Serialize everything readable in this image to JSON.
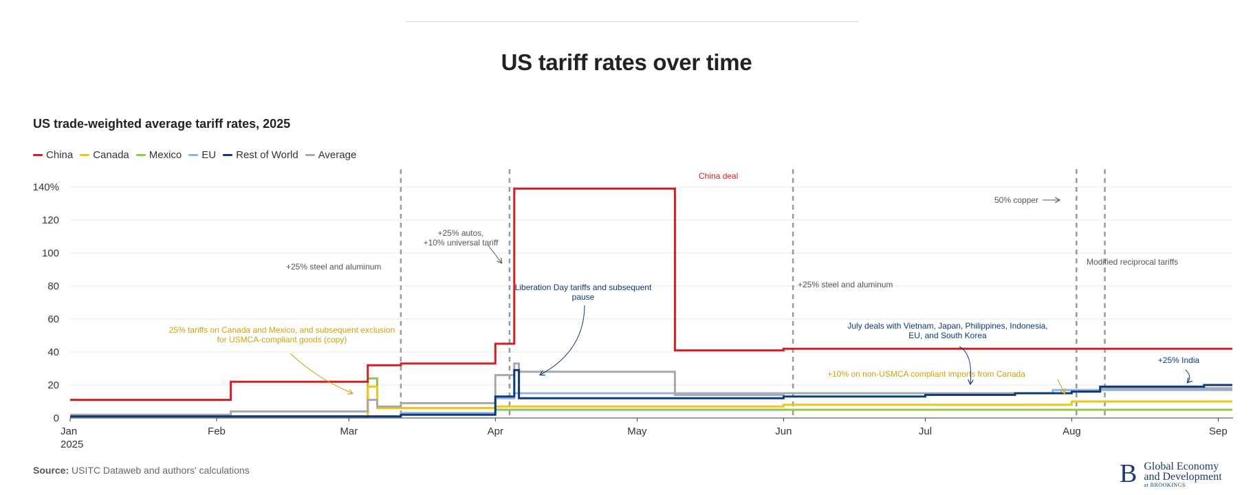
{
  "header": {
    "title": "US tariff rates over time"
  },
  "chart_data": {
    "type": "line",
    "step": true,
    "title": "US trade-weighted average tariff rates, 2025",
    "xlabel": "",
    "ylabel": "",
    "x_ticks": [
      {
        "label": "Jan",
        "sublabel": "2025",
        "day": 0
      },
      {
        "label": "Feb",
        "day": 31
      },
      {
        "label": "Mar",
        "day": 59
      },
      {
        "label": "Apr",
        "day": 90
      },
      {
        "label": "May",
        "day": 120
      },
      {
        "label": "Jun",
        "day": 151
      },
      {
        "label": "Jul",
        "day": 181
      },
      {
        "label": "Aug",
        "day": 212
      },
      {
        "label": "Sep",
        "day": 243
      }
    ],
    "xlim": [
      0,
      246
    ],
    "ylim": [
      0,
      140
    ],
    "y_ticks": [
      {
        "value": 0,
        "label": "0"
      },
      {
        "value": 20,
        "label": "20"
      },
      {
        "value": 40,
        "label": "40"
      },
      {
        "value": 60,
        "label": "60"
      },
      {
        "value": 80,
        "label": "80"
      },
      {
        "value": 100,
        "label": "100"
      },
      {
        "value": 120,
        "label": "120"
      },
      {
        "value": 140,
        "label": "140%"
      }
    ],
    "series": [
      {
        "name": "Mexico",
        "color": "#8cc84b",
        "points": [
          [
            0,
            1
          ],
          [
            63,
            1
          ],
          [
            63,
            24
          ],
          [
            65,
            24
          ],
          [
            65,
            6
          ],
          [
            90,
            6
          ],
          [
            90,
            5
          ],
          [
            151,
            5
          ],
          [
            151,
            5
          ],
          [
            246,
            5
          ]
        ]
      },
      {
        "name": "Canada",
        "color": "#f2c416",
        "points": [
          [
            0,
            1
          ],
          [
            63,
            1
          ],
          [
            63,
            19
          ],
          [
            65,
            19
          ],
          [
            65,
            6
          ],
          [
            90,
            6
          ],
          [
            90,
            7
          ],
          [
            151,
            7
          ],
          [
            151,
            8
          ],
          [
            212,
            8
          ],
          [
            212,
            10
          ],
          [
            246,
            10
          ]
        ]
      },
      {
        "name": "EU",
        "color": "#8fb4e3",
        "points": [
          [
            0,
            1
          ],
          [
            70,
            1
          ],
          [
            70,
            3
          ],
          [
            90,
            3
          ],
          [
            90,
            12
          ],
          [
            94,
            12
          ],
          [
            94,
            15
          ],
          [
            128,
            15
          ],
          [
            128,
            15
          ],
          [
            151,
            15
          ],
          [
            151,
            15
          ],
          [
            208,
            15
          ],
          [
            208,
            17
          ],
          [
            218,
            17
          ],
          [
            218,
            17
          ],
          [
            246,
            17
          ]
        ]
      },
      {
        "name": "Average",
        "color": "#a8a8a8",
        "points": [
          [
            0,
            2
          ],
          [
            34,
            2
          ],
          [
            34,
            4
          ],
          [
            63,
            4
          ],
          [
            63,
            11
          ],
          [
            65,
            11
          ],
          [
            65,
            7
          ],
          [
            70,
            7
          ],
          [
            70,
            9
          ],
          [
            90,
            9
          ],
          [
            90,
            26
          ],
          [
            94,
            26
          ],
          [
            94,
            33
          ],
          [
            95,
            33
          ],
          [
            95,
            28
          ],
          [
            128,
            28
          ],
          [
            128,
            14
          ],
          [
            151,
            14
          ],
          [
            151,
            15
          ],
          [
            212,
            15
          ],
          [
            212,
            16
          ],
          [
            218,
            16
          ],
          [
            218,
            18
          ],
          [
            246,
            18
          ]
        ]
      },
      {
        "name": "Rest of World",
        "color": "#0d3a78",
        "points": [
          [
            0,
            1
          ],
          [
            70,
            1
          ],
          [
            70,
            2
          ],
          [
            90,
            2
          ],
          [
            90,
            13
          ],
          [
            94,
            13
          ],
          [
            94,
            29
          ],
          [
            95,
            29
          ],
          [
            95,
            12
          ],
          [
            151,
            12
          ],
          [
            151,
            13
          ],
          [
            181,
            13
          ],
          [
            181,
            14
          ],
          [
            200,
            14
          ],
          [
            200,
            15
          ],
          [
            212,
            15
          ],
          [
            212,
            16
          ],
          [
            218,
            16
          ],
          [
            218,
            19
          ],
          [
            240,
            19
          ],
          [
            240,
            20
          ],
          [
            246,
            20
          ]
        ]
      },
      {
        "name": "China",
        "color": "#d21f26",
        "points": [
          [
            0,
            11
          ],
          [
            34,
            11
          ],
          [
            34,
            22
          ],
          [
            63,
            22
          ],
          [
            63,
            32
          ],
          [
            70,
            32
          ],
          [
            70,
            33
          ],
          [
            90,
            33
          ],
          [
            90,
            45
          ],
          [
            94,
            45
          ],
          [
            94,
            139
          ],
          [
            128,
            139
          ],
          [
            128,
            41
          ],
          [
            151,
            41
          ],
          [
            151,
            42
          ],
          [
            246,
            42
          ]
        ]
      }
    ],
    "event_lines": [
      {
        "day": 70,
        "label": "+25% steel and aluminum"
      },
      {
        "day": 93,
        "label": "+25% autos, +10% universal tariff"
      },
      {
        "day": 153,
        "label": "+25% steel and aluminum"
      },
      {
        "day": 213,
        "label": "50% copper"
      },
      {
        "day": 219,
        "label": "Modified reciprocal tariffs"
      }
    ],
    "annotations": [
      {
        "id": "china_deal",
        "lines": [
          "China deal"
        ],
        "color": "#d21f26"
      },
      {
        "id": "steel1",
        "lines": [
          "+25% steel and aluminum"
        ],
        "color": "#555555"
      },
      {
        "id": "autos",
        "lines": [
          "+25% autos,",
          "+10% universal tariff"
        ],
        "color": "#555555"
      },
      {
        "id": "usmca",
        "lines": [
          "25% tariffs on Canada and Mexico, and subsequent exclusion",
          "for USMCA-compliant goods (copy)"
        ],
        "color": "#c9a30b"
      },
      {
        "id": "liberation",
        "lines": [
          "Liberation Day tariffs and subsequent",
          "pause"
        ],
        "color": "#0d3a78"
      },
      {
        "id": "steel2",
        "lines": [
          "+25% steel and aluminum"
        ],
        "color": "#555555"
      },
      {
        "id": "july",
        "lines": [
          "July deals with Vietnam, Japan,  Philippines, Indonesia,",
          "EU, and South Korea"
        ],
        "color": "#0d3a78"
      },
      {
        "id": "canada10",
        "lines": [
          "+10% on non-USMCA compliant imports from Canada"
        ],
        "color": "#c9a30b"
      },
      {
        "id": "copper",
        "lines": [
          "50% copper"
        ],
        "color": "#555555"
      },
      {
        "id": "reciprocal",
        "lines": [
          "Modified reciprocal tariffs"
        ],
        "color": "#555555"
      },
      {
        "id": "india",
        "lines": [
          "+25% India"
        ],
        "color": "#0d3a78"
      }
    ],
    "legend": [
      {
        "name": "China",
        "color": "#d21f26"
      },
      {
        "name": "Canada",
        "color": "#f2c416"
      },
      {
        "name": "Mexico",
        "color": "#8cc84b"
      },
      {
        "name": "EU",
        "color": "#8fb4e3"
      },
      {
        "name": "Rest of World",
        "color": "#0d3a78"
      },
      {
        "name": "Average",
        "color": "#a8a8a8"
      }
    ],
    "legend_position": "top-left",
    "grid": true
  },
  "footer": {
    "source_label": "Source:",
    "source_text": "USITC Dataweb and authors' calculations",
    "logo": {
      "mark": "B",
      "line1": "Global Economy",
      "line2": "and Development",
      "line3": "at BROOKINGS"
    }
  }
}
